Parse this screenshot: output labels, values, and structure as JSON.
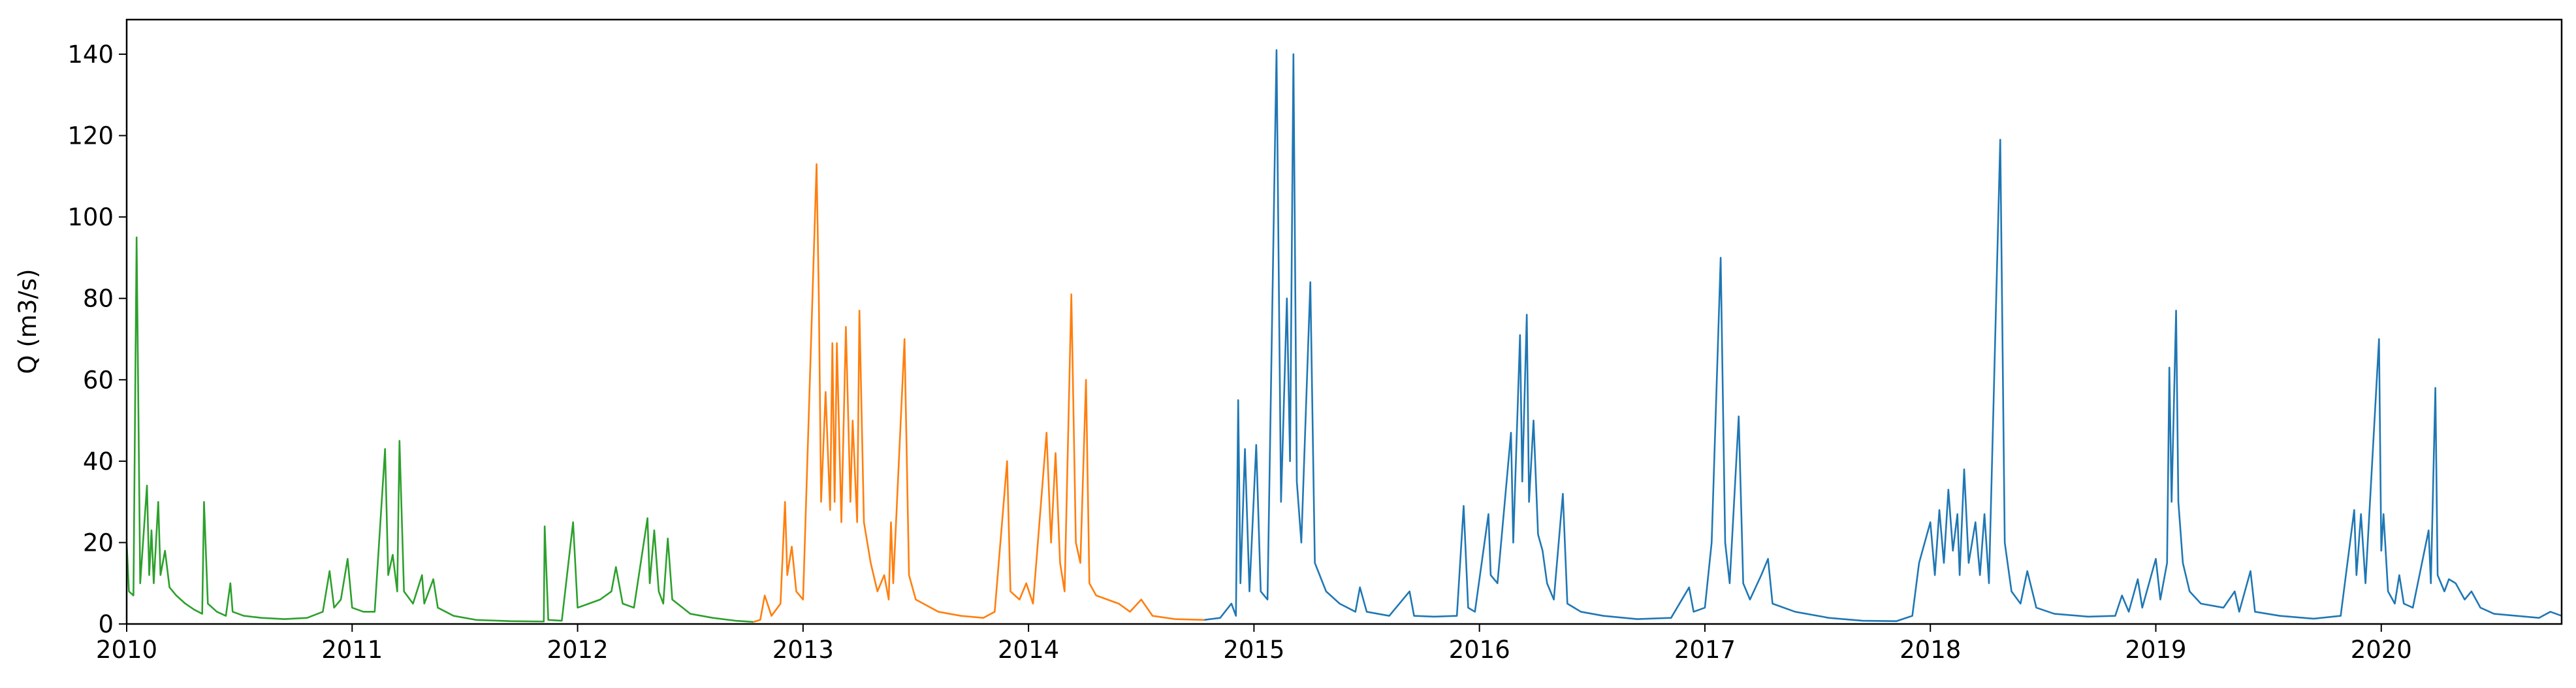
{
  "chart_data": {
    "type": "line",
    "y_label": "Q (m3/s)",
    "xlim": [
      2010,
      2020.8
    ],
    "xticks": [
      2010,
      2011,
      2012,
      2013,
      2014,
      2015,
      2016,
      2017,
      2018,
      2019,
      2020
    ],
    "ylim": [
      0,
      148.5
    ],
    "yticks": [
      0,
      20,
      40,
      60,
      80,
      100,
      120,
      140
    ],
    "grid": false,
    "series": [
      {
        "color": "#2ca02c",
        "x": [
          2010.0,
          2010.01,
          2010.03,
          2010.044,
          2010.06,
          2010.09,
          2010.1,
          2010.11,
          2010.12,
          2010.14,
          2010.15,
          2010.17,
          2010.19,
          2010.22,
          2010.26,
          2010.3,
          2010.335,
          2010.343,
          2010.36,
          2010.4,
          2010.44,
          2010.46,
          2010.47,
          2010.52,
          2010.6,
          2010.7,
          2010.8,
          2010.87,
          2010.9,
          2010.92,
          2010.95,
          2010.98,
          2011.0,
          2011.05,
          2011.1,
          2011.146,
          2011.16,
          2011.18,
          2011.2,
          2011.21,
          2011.23,
          2011.27,
          2011.31,
          2011.32,
          2011.36,
          2011.38,
          2011.45,
          2011.55,
          2011.7,
          2011.85,
          2011.854,
          2011.87,
          2011.93,
          2011.98,
          2012.0,
          2012.05,
          2012.1,
          2012.15,
          2012.17,
          2012.2,
          2012.25,
          2012.31,
          2012.32,
          2012.34,
          2012.36,
          2012.38,
          2012.4,
          2012.42,
          2012.5,
          2012.6,
          2012.7,
          2012.78
        ],
        "values": [
          20,
          8,
          7,
          95,
          10,
          34,
          12,
          23,
          10,
          30,
          12,
          18,
          9,
          7,
          5,
          3.5,
          2.5,
          30,
          5,
          3,
          2,
          10,
          3,
          2,
          1.5,
          1.2,
          1.5,
          3,
          13,
          4,
          6,
          16,
          4,
          3,
          3,
          43,
          12,
          17,
          8,
          45,
          8,
          5,
          12,
          5,
          11,
          4,
          2,
          1,
          0.7,
          0.6,
          24,
          1,
          0.8,
          25,
          4,
          5,
          6,
          8,
          14,
          5,
          4,
          26,
          10,
          23,
          8,
          5,
          21,
          6,
          2.5,
          1.5,
          0.8,
          0.5
        ]
      },
      {
        "color": "#ff7f0e",
        "x": [
          2012.78,
          2012.81,
          2012.83,
          2012.86,
          2012.9,
          2012.92,
          2012.93,
          2012.95,
          2012.97,
          2013.0,
          2013.06,
          2013.07,
          2013.08,
          2013.1,
          2013.12,
          2013.13,
          2013.14,
          2013.15,
          2013.17,
          2013.19,
          2013.21,
          2013.22,
          2013.24,
          2013.25,
          2013.27,
          2013.3,
          2013.33,
          2013.36,
          2013.38,
          2013.39,
          2013.4,
          2013.45,
          2013.47,
          2013.5,
          2013.6,
          2013.7,
          2013.8,
          2013.85,
          2013.905,
          2013.92,
          2013.96,
          2013.99,
          2014.02,
          2014.08,
          2014.1,
          2014.12,
          2014.14,
          2014.16,
          2014.19,
          2014.21,
          2014.23,
          2014.255,
          2014.27,
          2014.3,
          2014.35,
          2014.4,
          2014.45,
          2014.5,
          2014.55,
          2014.65,
          2014.78
        ],
        "values": [
          0.5,
          1,
          7,
          2,
          5,
          30,
          12,
          19,
          8,
          6,
          113,
          80,
          30,
          57,
          28,
          69,
          30,
          69,
          25,
          73,
          30,
          50,
          25,
          77,
          25,
          15,
          8,
          12,
          6,
          25,
          10,
          70,
          12,
          6,
          3,
          2,
          1.5,
          3,
          40,
          8,
          6,
          10,
          5,
          47,
          20,
          42,
          15,
          8,
          81,
          20,
          15,
          60,
          10,
          7,
          6,
          5,
          3,
          6,
          2,
          1.2,
          1
        ]
      },
      {
        "color": "#1f77b4",
        "x": [
          2014.78,
          2014.85,
          2014.9,
          2014.92,
          2014.93,
          2014.94,
          2014.96,
          2014.98,
          2015.01,
          2015.03,
          2015.06,
          2015.1,
          2015.12,
          2015.146,
          2015.16,
          2015.175,
          2015.19,
          2015.21,
          2015.25,
          2015.27,
          2015.32,
          2015.38,
          2015.45,
          2015.47,
          2015.5,
          2015.6,
          2015.69,
          2015.71,
          2015.8,
          2015.9,
          2015.93,
          2015.95,
          2015.98,
          2016.04,
          2016.05,
          2016.08,
          2016.14,
          2016.15,
          2016.18,
          2016.19,
          2016.21,
          2016.22,
          2016.24,
          2016.26,
          2016.28,
          2016.3,
          2016.33,
          2016.37,
          2016.39,
          2016.45,
          2016.55,
          2016.7,
          2016.85,
          2016.93,
          2016.95,
          2017.0,
          2017.03,
          2017.07,
          2017.09,
          2017.11,
          2017.15,
          2017.17,
          2017.2,
          2017.25,
          2017.28,
          2017.3,
          2017.4,
          2017.55,
          2017.7,
          2017.85,
          2017.92,
          2017.95,
          2018.0,
          2018.02,
          2018.04,
          2018.06,
          2018.08,
          2018.1,
          2018.12,
          2018.13,
          2018.15,
          2018.17,
          2018.2,
          2018.22,
          2018.24,
          2018.26,
          2018.31,
          2018.33,
          2018.36,
          2018.4,
          2018.43,
          2018.47,
          2018.55,
          2018.7,
          2018.82,
          2018.85,
          2018.88,
          2018.92,
          2018.94,
          2019.0,
          2019.02,
          2019.05,
          2019.06,
          2019.07,
          2019.09,
          2019.1,
          2019.12,
          2019.15,
          2019.2,
          2019.3,
          2019.35,
          2019.37,
          2019.42,
          2019.44,
          2019.55,
          2019.7,
          2019.82,
          2019.88,
          2019.89,
          2019.91,
          2019.93,
          2019.99,
          2020.0,
          2020.01,
          2020.03,
          2020.06,
          2020.08,
          2020.1,
          2020.14,
          2020.21,
          2020.22,
          2020.24,
          2020.25,
          2020.28,
          2020.3,
          2020.33,
          2020.37,
          2020.4,
          2020.44,
          2020.5,
          2020.6,
          2020.7,
          2020.75,
          2020.8
        ],
        "values": [
          1,
          1.5,
          5,
          2,
          55,
          10,
          43,
          8,
          44,
          8,
          6,
          141,
          30,
          80,
          40,
          140,
          35,
          20,
          84,
          15,
          8,
          5,
          3,
          9,
          3,
          2,
          8,
          2,
          1.8,
          2,
          29,
          4,
          3,
          27,
          12,
          10,
          47,
          20,
          71,
          35,
          76,
          30,
          50,
          22,
          18,
          10,
          6,
          32,
          5,
          3,
          2,
          1.2,
          1.5,
          9,
          3,
          4,
          20,
          90,
          20,
          10,
          51,
          10,
          6,
          12,
          16,
          5,
          3,
          1.5,
          0.8,
          0.7,
          2,
          15,
          25,
          12,
          28,
          15,
          33,
          18,
          27,
          12,
          38,
          15,
          25,
          12,
          27,
          10,
          119,
          20,
          8,
          5,
          13,
          4,
          2.5,
          1.8,
          2,
          7,
          3,
          11,
          4,
          16,
          6,
          15,
          63,
          30,
          77,
          30,
          15,
          8,
          5,
          4,
          8,
          3,
          13,
          3,
          2,
          1.3,
          2,
          28,
          12,
          27,
          10,
          70,
          18,
          27,
          8,
          5,
          12,
          5,
          4,
          23,
          10,
          58,
          12,
          8,
          11,
          10,
          6,
          8,
          4,
          2.5,
          2,
          1.5,
          3,
          2
        ]
      }
    ]
  }
}
